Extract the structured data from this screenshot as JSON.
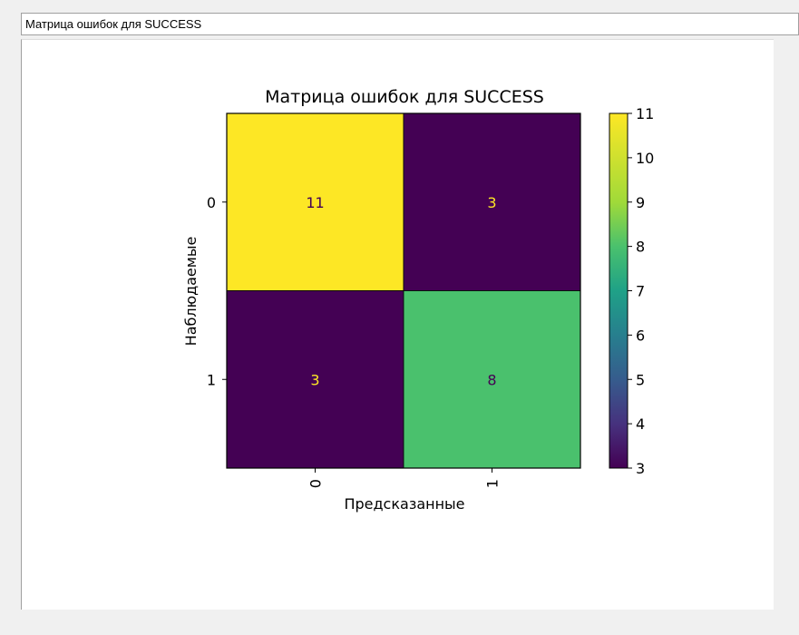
{
  "window": {
    "title": "Матрица ошибок для SUCCESS"
  },
  "chart_data": {
    "type": "heatmap",
    "title": "Матрица ошибок для SUCCESS",
    "xlabel": "Предсказанные",
    "ylabel": "Наблюдаемые",
    "x_categories": [
      "0",
      "1"
    ],
    "y_categories": [
      "0",
      "1"
    ],
    "values": [
      [
        11,
        3
      ],
      [
        3,
        8
      ]
    ],
    "colormap": "viridis",
    "colorbar": {
      "min": 3,
      "max": 11,
      "ticks": [
        "3",
        "4",
        "5",
        "6",
        "7",
        "8",
        "9",
        "10",
        "11"
      ]
    },
    "label_colors": {
      "light": "#fde725",
      "dark": "#440154"
    }
  }
}
